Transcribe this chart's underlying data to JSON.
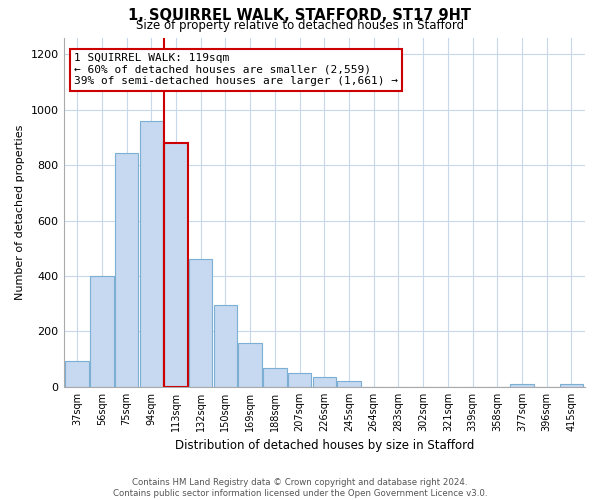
{
  "title": "1, SQUIRREL WALK, STAFFORD, ST17 9HT",
  "subtitle": "Size of property relative to detached houses in Stafford",
  "xlabel": "Distribution of detached houses by size in Stafford",
  "ylabel": "Number of detached properties",
  "bar_labels": [
    "37sqm",
    "56sqm",
    "75sqm",
    "94sqm",
    "113sqm",
    "132sqm",
    "150sqm",
    "169sqm",
    "188sqm",
    "207sqm",
    "226sqm",
    "245sqm",
    "264sqm",
    "283sqm",
    "302sqm",
    "321sqm",
    "339sqm",
    "358sqm",
    "377sqm",
    "396sqm",
    "415sqm"
  ],
  "bar_values": [
    95,
    400,
    845,
    960,
    880,
    460,
    295,
    160,
    70,
    50,
    35,
    20,
    0,
    0,
    0,
    0,
    0,
    0,
    10,
    0,
    10
  ],
  "bar_color": "#c6d9f0",
  "bar_edge_color": "#7bafd4",
  "highlight_bar_index": 4,
  "highlight_edge_color": "#cc0000",
  "vline_color": "#cc0000",
  "ylim": [
    0,
    1260
  ],
  "yticks": [
    0,
    200,
    400,
    600,
    800,
    1000,
    1200
  ],
  "annotation_title": "1 SQUIRREL WALK: 119sqm",
  "annotation_line1": "← 60% of detached houses are smaller (2,559)",
  "annotation_line2": "39% of semi-detached houses are larger (1,661) →",
  "annotation_box_color": "#ffffff",
  "annotation_box_edge": "#cc0000",
  "footer_line1": "Contains HM Land Registry data © Crown copyright and database right 2024.",
  "footer_line2": "Contains public sector information licensed under the Open Government Licence v3.0.",
  "background_color": "#ffffff",
  "grid_color": "#c8d8ea"
}
